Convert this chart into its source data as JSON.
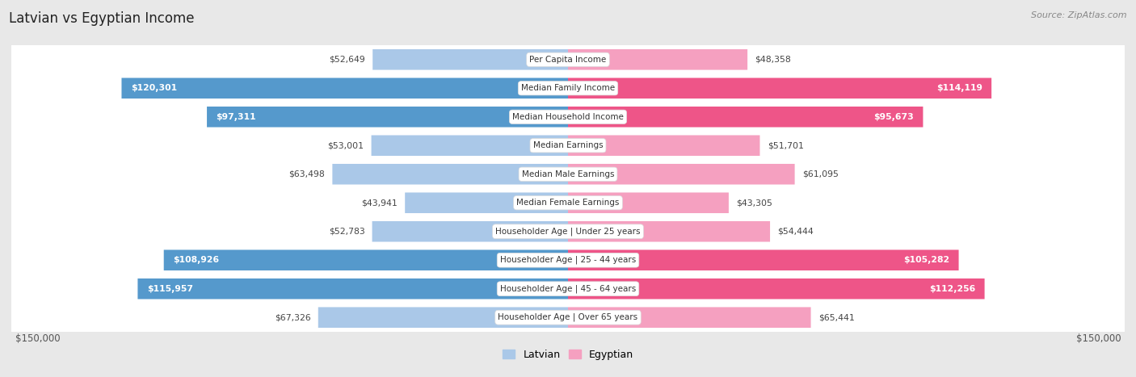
{
  "title": "Latvian vs Egyptian Income",
  "source": "Source: ZipAtlas.com",
  "categories": [
    "Per Capita Income",
    "Median Family Income",
    "Median Household Income",
    "Median Earnings",
    "Median Male Earnings",
    "Median Female Earnings",
    "Householder Age | Under 25 years",
    "Householder Age | 25 - 44 years",
    "Householder Age | 45 - 64 years",
    "Householder Age | Over 65 years"
  ],
  "latvian_values": [
    52649,
    120301,
    97311,
    53001,
    63498,
    43941,
    52783,
    108926,
    115957,
    67326
  ],
  "egyptian_values": [
    48358,
    114119,
    95673,
    51701,
    61095,
    43305,
    54444,
    105282,
    112256,
    65441
  ],
  "latvian_labels": [
    "$52,649",
    "$120,301",
    "$97,311",
    "$53,001",
    "$63,498",
    "$43,941",
    "$52,783",
    "$108,926",
    "$115,957",
    "$67,326"
  ],
  "egyptian_labels": [
    "$48,358",
    "$114,119",
    "$95,673",
    "$51,701",
    "$61,095",
    "$43,305",
    "$54,444",
    "$105,282",
    "$112,256",
    "$65,441"
  ],
  "latvian_color_light": "#aac8e8",
  "latvian_color_strong": "#5599cc",
  "egyptian_color_light": "#f5a0c0",
  "egyptian_color_strong": "#ee5588",
  "bg_color": "#e8e8e8",
  "row_bg": "#f8f8f8",
  "max_value": 150000,
  "legend_latvian": "Latvian",
  "legend_egyptian": "Egyptian",
  "threshold_strong": 80000
}
